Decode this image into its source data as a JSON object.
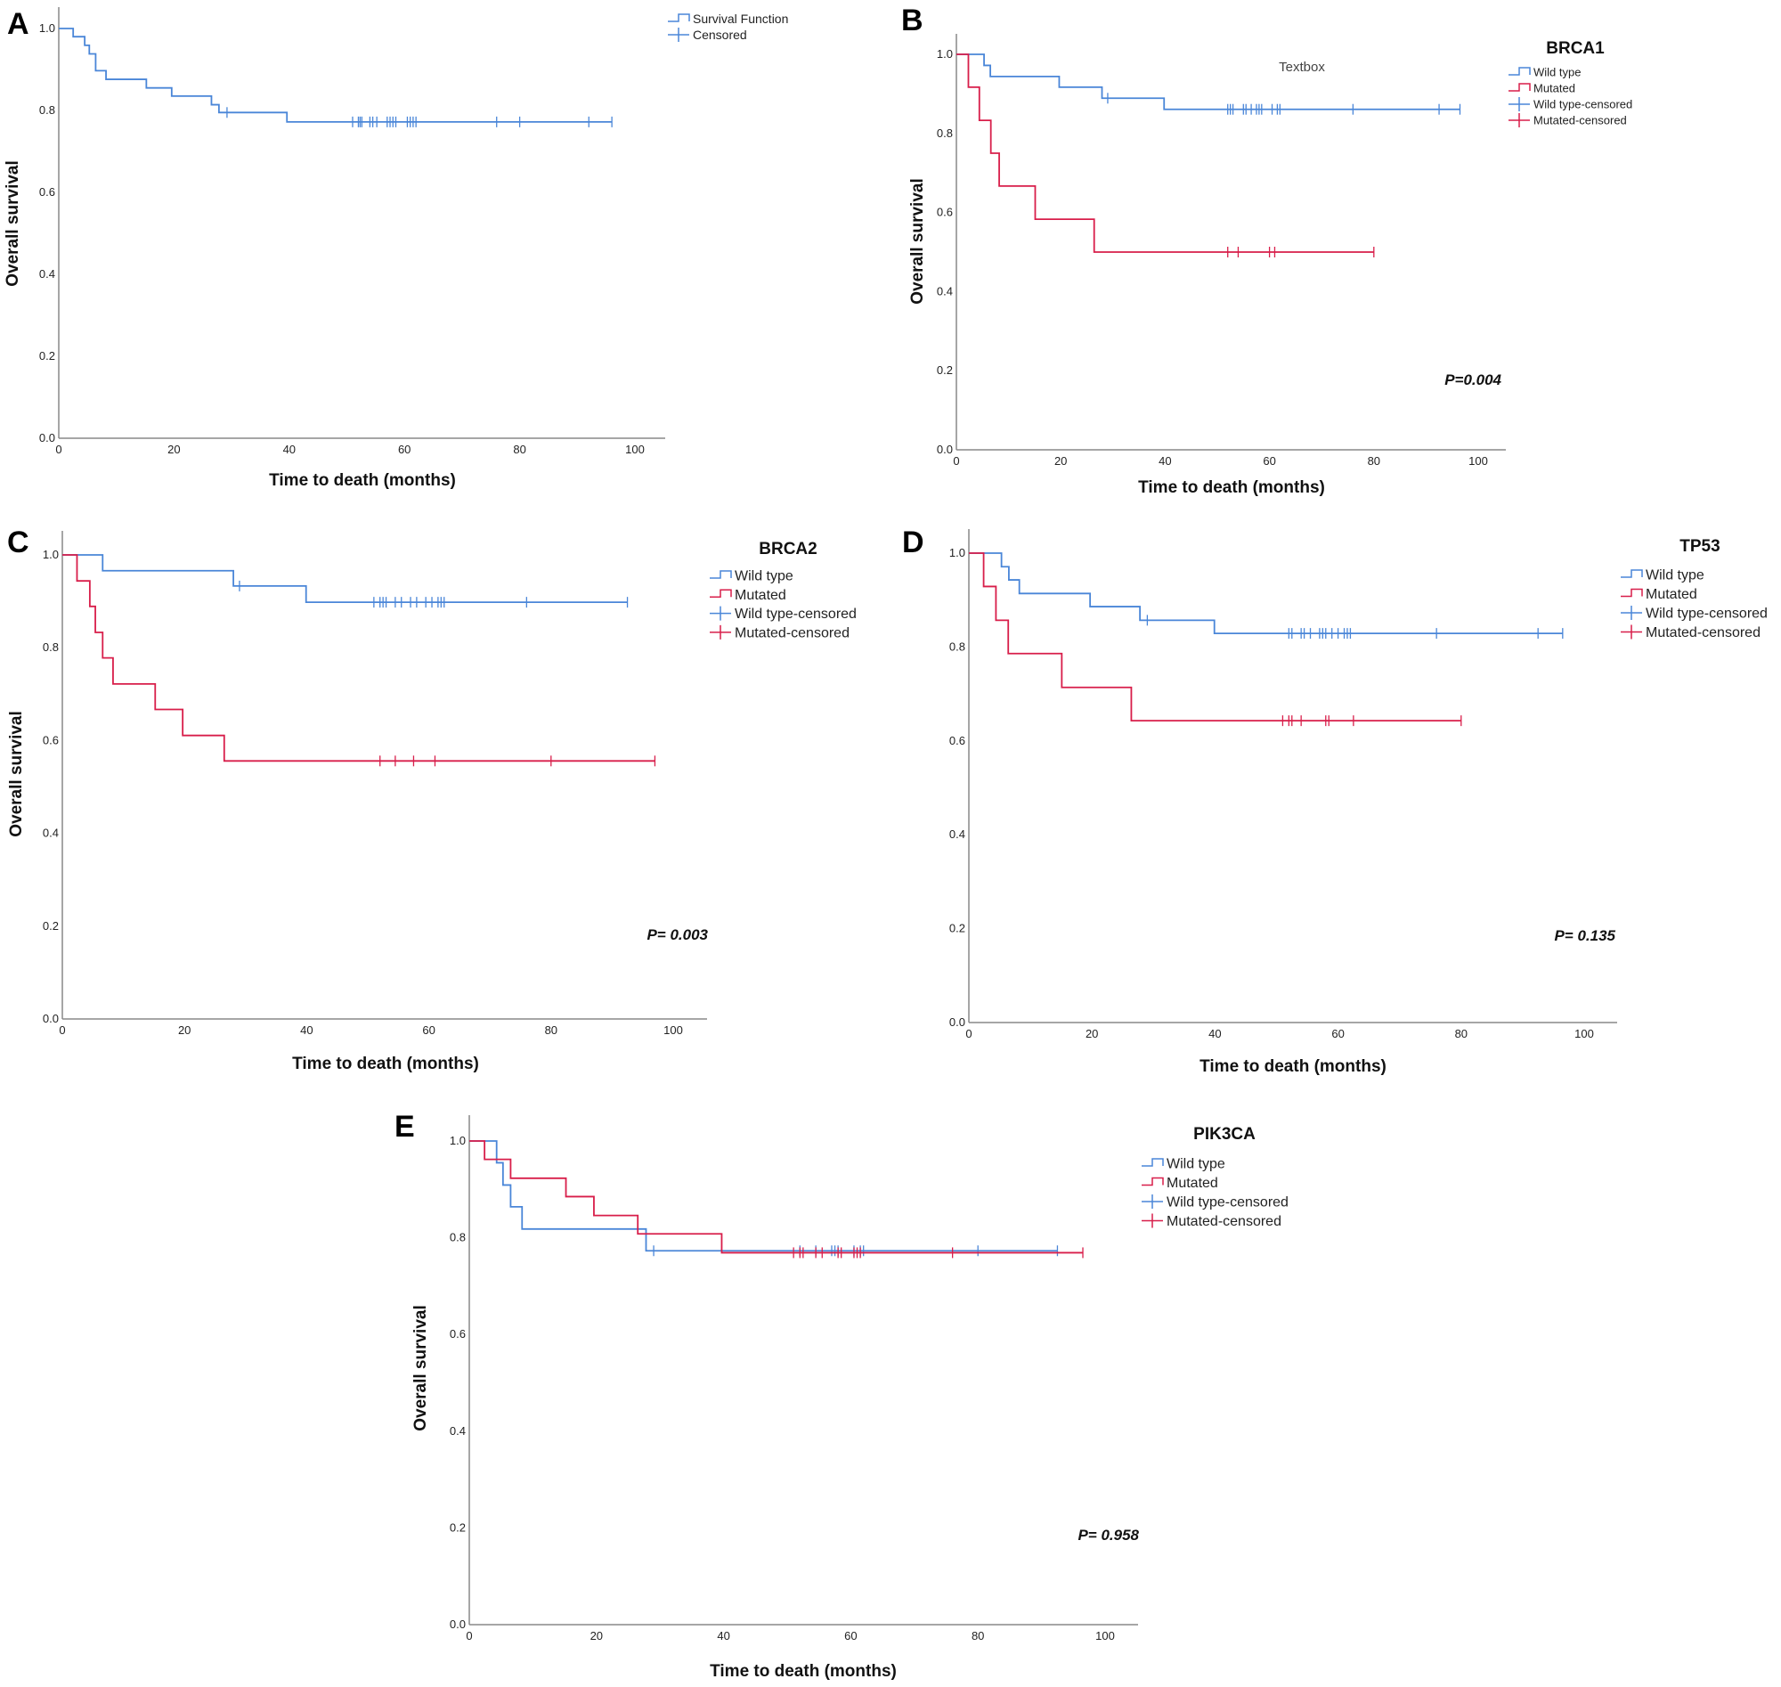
{
  "colors": {
    "wild_type": "#4a86d8",
    "mutated": "#d81e4a",
    "axis": "#888888"
  },
  "chart_data": [
    {
      "panel": "A",
      "type": "line",
      "title": "",
      "xlabel": "Time to death (months)",
      "ylabel": "Overall survival",
      "xlim": [
        0,
        105
      ],
      "ylim": [
        0,
        1.05
      ],
      "xticks": [
        "0",
        "20",
        "40",
        "60",
        "80",
        "100"
      ],
      "yticks": [
        "0.0",
        "0.2",
        "0.4",
        "0.6",
        "0.8",
        "1.0"
      ],
      "legend": [
        "Survival Function",
        "Censored"
      ],
      "p_value": "",
      "annotation": "",
      "series": [
        {
          "color_key": "wild_type",
          "steps": [
            [
              0,
              1.0
            ],
            [
              2.5,
              0.98
            ],
            [
              4.5,
              0.959
            ],
            [
              5.3,
              0.938
            ],
            [
              6.4,
              0.897
            ],
            [
              8.2,
              0.876
            ],
            [
              15.2,
              0.855
            ],
            [
              19.6,
              0.835
            ],
            [
              26.5,
              0.814
            ],
            [
              27.8,
              0.795
            ],
            [
              39.6,
              0.772
            ]
          ],
          "censored": [
            29.2,
            51,
            52,
            52.3,
            52.6,
            54,
            54.5,
            55.2,
            57,
            57.5,
            58,
            58.5,
            60.5,
            61,
            61.5,
            62,
            76,
            80,
            92,
            96
          ]
        }
      ]
    },
    {
      "panel": "B",
      "type": "line",
      "title": "BRCA1",
      "xlabel": "Time to death (months)",
      "ylabel": "Overall survival",
      "xlim": [
        0,
        105
      ],
      "ylim": [
        0,
        1.05
      ],
      "xticks": [
        "0",
        "20",
        "40",
        "60",
        "80",
        "100"
      ],
      "yticks": [
        "0.0",
        "0.2",
        "0.4",
        "0.6",
        "0.8",
        "1.0"
      ],
      "legend": [
        "Wild type",
        "Mutated",
        "Wild type-censored",
        "Mutated-censored"
      ],
      "p_value": "P=0.004",
      "annotation": "Textbox",
      "series": [
        {
          "name": "Wild type",
          "color_key": "wild_type",
          "steps": [
            [
              0,
              1.0
            ],
            [
              5.3,
              0.972
            ],
            [
              6.5,
              0.944
            ],
            [
              19.7,
              0.917
            ],
            [
              27.9,
              0.889
            ],
            [
              39.8,
              0.861
            ]
          ],
          "censored": [
            29,
            52,
            52.5,
            53,
            55,
            55.5,
            56.5,
            57.5,
            58,
            58.5,
            60.5,
            61.5,
            62,
            76,
            92.5,
            96.5
          ]
        },
        {
          "name": "Mutated",
          "color_key": "mutated",
          "steps": [
            [
              0,
              1.0
            ],
            [
              2.3,
              0.917
            ],
            [
              4.4,
              0.833
            ],
            [
              6.6,
              0.75
            ],
            [
              8.2,
              0.667
            ],
            [
              15.1,
              0.583
            ],
            [
              26.4,
              0.5
            ]
          ],
          "censored": [
            52,
            54,
            60,
            61,
            80
          ]
        }
      ]
    },
    {
      "panel": "C",
      "type": "line",
      "title": "BRCA2",
      "xlabel": "Time to death (months)",
      "ylabel": "Overall survival",
      "xlim": [
        0,
        105
      ],
      "ylim": [
        0,
        1.05
      ],
      "xticks": [
        "0",
        "20",
        "40",
        "60",
        "80",
        "100"
      ],
      "yticks": [
        "0.0",
        "0.2",
        "0.4",
        "0.6",
        "0.8",
        "1.0"
      ],
      "legend": [
        "Wild type",
        "Mutated",
        "Wild type-censored",
        "Mutated-censored"
      ],
      "p_value": "P= 0.003",
      "annotation": "",
      "series": [
        {
          "name": "Wild type",
          "color_key": "wild_type",
          "steps": [
            [
              0,
              1.0
            ],
            [
              6.6,
              0.966
            ],
            [
              28,
              0.933
            ],
            [
              39.9,
              0.898
            ]
          ],
          "censored": [
            29,
            51,
            52,
            52.5,
            53,
            54.5,
            55.5,
            57,
            58,
            59.5,
            60.5,
            61.5,
            62,
            62.5,
            76,
            92.5
          ]
        },
        {
          "name": "Mutated",
          "color_key": "mutated",
          "steps": [
            [
              0,
              1.0
            ],
            [
              2.4,
              0.944
            ],
            [
              4.5,
              0.889
            ],
            [
              5.4,
              0.833
            ],
            [
              6.6,
              0.778
            ],
            [
              8.3,
              0.722
            ],
            [
              15.2,
              0.667
            ],
            [
              19.7,
              0.611
            ],
            [
              26.5,
              0.556
            ]
          ],
          "censored": [
            52,
            54.5,
            57.5,
            61,
            80,
            97
          ]
        }
      ]
    },
    {
      "panel": "D",
      "type": "line",
      "title": "TP53",
      "xlabel": "Time to death (months)",
      "ylabel": "",
      "xlim": [
        0,
        105
      ],
      "ylim": [
        0,
        1.05
      ],
      "xticks": [
        "0",
        "20",
        "40",
        "60",
        "80",
        "100"
      ],
      "yticks": [
        "0.0",
        "0.2",
        "0.4",
        "0.6",
        "0.8",
        "1.0"
      ],
      "legend": [
        "Wild type",
        "Mutated",
        "Wild type-censored",
        "Mutated-censored"
      ],
      "p_value": "P= 0.135",
      "annotation": "",
      "series": [
        {
          "name": "Wild type",
          "color_key": "wild_type",
          "steps": [
            [
              0,
              1.0
            ],
            [
              5.3,
              0.971
            ],
            [
              6.5,
              0.943
            ],
            [
              8.2,
              0.914
            ],
            [
              19.7,
              0.886
            ],
            [
              27.8,
              0.857
            ],
            [
              39.9,
              0.829
            ]
          ],
          "censored": [
            29,
            52,
            52.5,
            54,
            54.5,
            55.5,
            57,
            57.5,
            58,
            59,
            60,
            61,
            61.5,
            62,
            76,
            92.5,
            96.5
          ]
        },
        {
          "name": "Mutated",
          "color_key": "mutated",
          "steps": [
            [
              0,
              1.0
            ],
            [
              2.4,
              0.929
            ],
            [
              4.4,
              0.857
            ],
            [
              6.4,
              0.786
            ],
            [
              15.1,
              0.714
            ],
            [
              26.4,
              0.643
            ]
          ],
          "censored": [
            51,
            52,
            52.5,
            54,
            58,
            58.5,
            62.5,
            80
          ]
        }
      ]
    },
    {
      "panel": "E",
      "type": "line",
      "title": "PIK3CA",
      "xlabel": "Time to death (months)",
      "ylabel": "Overall survival",
      "xlim": [
        0,
        105
      ],
      "ylim": [
        0,
        1.05
      ],
      "xticks": [
        "0",
        "20",
        "40",
        "60",
        "80",
        "100"
      ],
      "yticks": [
        "0.0",
        "0.2",
        "0.4",
        "0.6",
        "0.8",
        "1.0"
      ],
      "legend": [
        "Wild type",
        "Mutated",
        "Wild type-censored",
        "Mutated-censored"
      ],
      "p_value": "P= 0.958",
      "annotation": "",
      "series": [
        {
          "name": "Wild type",
          "color_key": "wild_type",
          "steps": [
            [
              0,
              1.0
            ],
            [
              4.3,
              0.955
            ],
            [
              5.3,
              0.909
            ],
            [
              6.5,
              0.864
            ],
            [
              8.3,
              0.818
            ],
            [
              27.8,
              0.773
            ]
          ],
          "censored": [
            29,
            52,
            54.5,
            57,
            57.5,
            58,
            60.5,
            61.5,
            62,
            80,
            92.5
          ]
        },
        {
          "name": "Mutated",
          "color_key": "mutated",
          "steps": [
            [
              0,
              1.0
            ],
            [
              2.4,
              0.962
            ],
            [
              6.5,
              0.923
            ],
            [
              15.2,
              0.885
            ],
            [
              19.6,
              0.846
            ],
            [
              26.5,
              0.808
            ],
            [
              39.7,
              0.769
            ]
          ],
          "censored": [
            51,
            52,
            52.5,
            54.5,
            55.5,
            58,
            58.5,
            60.5,
            61,
            61.5,
            76,
            96.5
          ]
        }
      ]
    }
  ]
}
